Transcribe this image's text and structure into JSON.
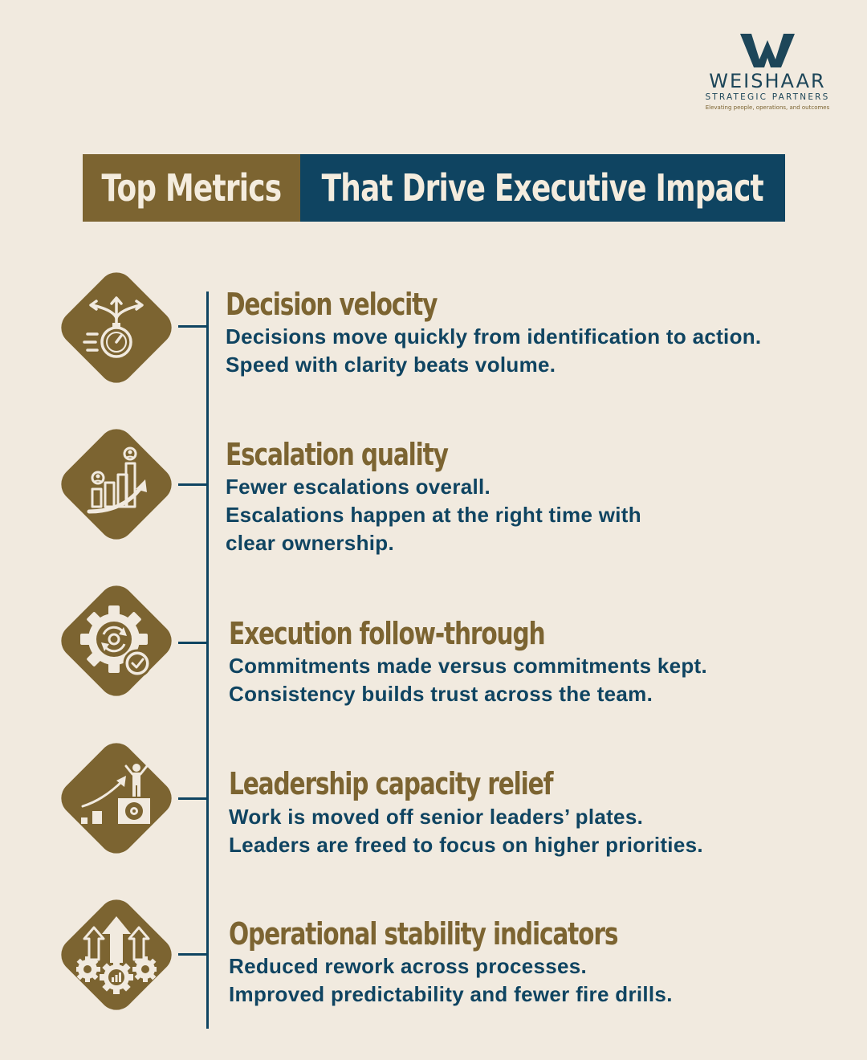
{
  "brand": {
    "name": "WEISHAAR",
    "subtitle": "STRATEGIC PARTNERS",
    "tagline": "Elevating people, operations, and outcomes",
    "colors": {
      "gold": "#7c6431",
      "navy": "#0f4461",
      "background": "#f1eadf"
    }
  },
  "title": {
    "left": "Top Metrics",
    "right": "That Drive Executive Impact"
  },
  "metrics": [
    {
      "icon": "decision-stopwatch-icon",
      "title": "Decision velocity",
      "lines": [
        "Decisions move quickly from identification to action.",
        "Speed with clarity beats volume."
      ]
    },
    {
      "icon": "escalation-growth-icon",
      "title": "Escalation quality",
      "lines": [
        "Fewer escalations overall.",
        "Escalations happen at the right time with",
        "clear ownership."
      ]
    },
    {
      "icon": "gear-check-icon",
      "title": "Execution follow-through",
      "lines": [
        "Commitments made versus commitments kept.",
        "Consistency builds trust across the team."
      ]
    },
    {
      "icon": "leader-growth-icon",
      "title": "Leadership capacity relief",
      "lines": [
        "Work is moved off senior leaders’ plates.",
        "Leaders are freed to focus on higher priorities."
      ]
    },
    {
      "icon": "operations-gears-icon",
      "title": "Operational stability indicators",
      "lines": [
        "Reduced rework across processes.",
        "Improved predictability and fewer fire drills."
      ]
    }
  ]
}
